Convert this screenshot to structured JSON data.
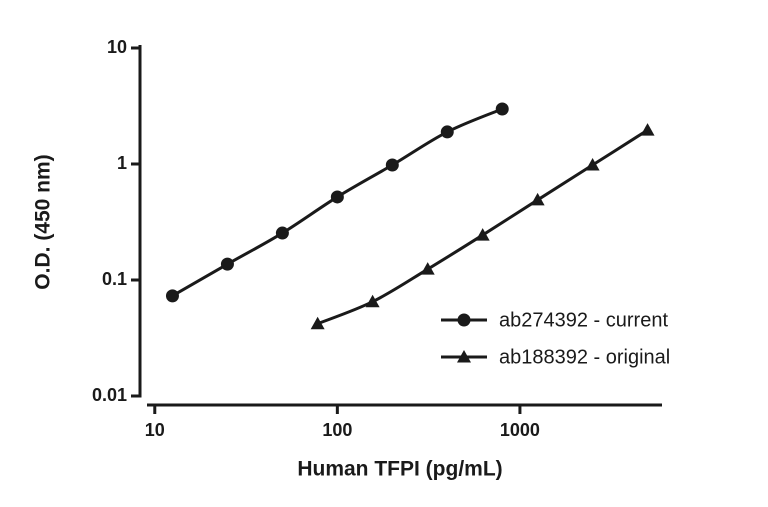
{
  "chart_data": {
    "type": "line",
    "x_label": "Human TFPI (pg/mL)",
    "y_label": "O.D. (450 nm)",
    "xscale": "log",
    "yscale": "log",
    "xlim": [
      8.3,
      6000
    ],
    "ylim": [
      0.01,
      10
    ],
    "xticks": [
      10,
      100,
      1000
    ],
    "yticks": [
      0.01,
      0.1,
      1,
      10
    ],
    "grid": false,
    "legend": "lower right",
    "series": [
      {
        "name": "ab274392 - current",
        "color": "#1a1a1a",
        "marker": "circle",
        "x": [
          12.5,
          25,
          50,
          100,
          200,
          400,
          800
        ],
        "values": [
          0.073,
          0.137,
          0.254,
          0.52,
          0.98,
          1.89,
          2.98
        ]
      },
      {
        "name": "ab188392 - original",
        "color": "#1a1a1a",
        "marker": "triangle",
        "x": [
          78,
          156,
          312.5,
          625,
          1250,
          2500,
          5000
        ],
        "values": [
          0.042,
          0.065,
          0.124,
          0.244,
          0.49,
          0.98,
          1.96
        ]
      }
    ]
  }
}
